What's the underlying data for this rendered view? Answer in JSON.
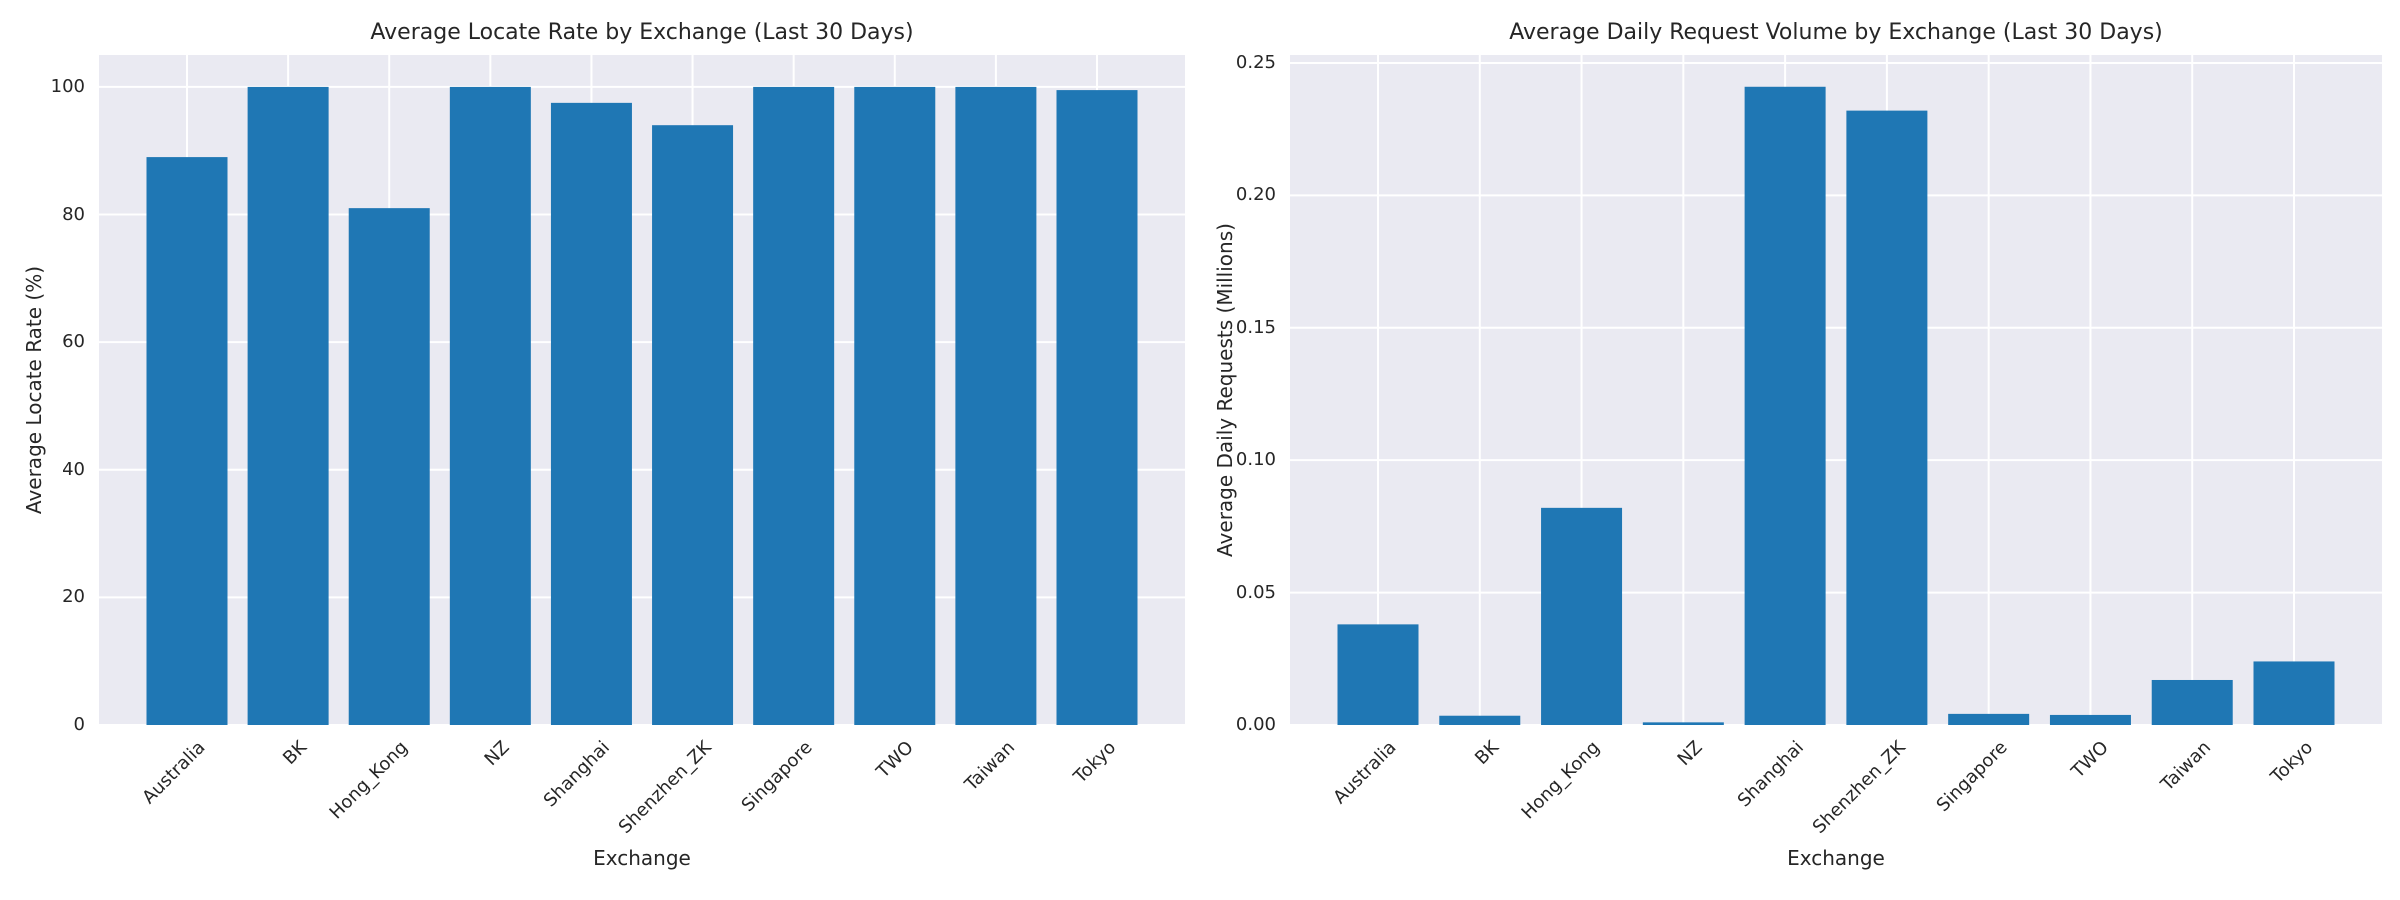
{
  "figure": {
    "background": "#ffffff",
    "text_color": "#262626"
  },
  "chart_data": [
    {
      "type": "bar",
      "title": "Average Locate Rate by Exchange (Last 30 Days)",
      "xlabel": "Exchange",
      "ylabel": "Average Locate Rate (%)",
      "categories": [
        "Australia",
        "BK",
        "Hong_Kong",
        "NZ",
        "Shanghai",
        "Shenzhen_ZK",
        "Singapore",
        "TWO",
        "Taiwan",
        "Tokyo"
      ],
      "values": [
        89,
        100,
        81,
        100,
        97.5,
        94,
        100,
        100,
        100,
        99.5
      ],
      "ylim": [
        0,
        105
      ],
      "yticks": [
        0,
        20,
        40,
        60,
        80,
        100
      ],
      "ytick_labels": [
        "0",
        "20",
        "40",
        "60",
        "80",
        "100"
      ],
      "xtick_rotation": 45,
      "grid": "on",
      "legend": "none",
      "bar_color": "#1f77b4",
      "plot_bg": "#eaeaf2",
      "grid_color": "#ffffff"
    },
    {
      "type": "bar",
      "title": "Average Daily Request Volume by Exchange (Last 30 Days)",
      "xlabel": "Exchange",
      "ylabel": "Average Daily Requests (Millions)",
      "categories": [
        "Australia",
        "BK",
        "Hong_Kong",
        "NZ",
        "Shanghai",
        "Shenzhen_ZK",
        "Singapore",
        "TWO",
        "Taiwan",
        "Tokyo"
      ],
      "values": [
        0.038,
        0.0035,
        0.082,
        0.001,
        0.241,
        0.232,
        0.0042,
        0.0038,
        0.017,
        0.024
      ],
      "ylim": [
        0,
        0.253
      ],
      "yticks": [
        0,
        0.05,
        0.1,
        0.15,
        0.2,
        0.25
      ],
      "ytick_labels": [
        "0.00",
        "0.05",
        "0.10",
        "0.15",
        "0.20",
        "0.25"
      ],
      "xtick_rotation": 45,
      "grid": "on",
      "legend": "none",
      "bar_color": "#1f77b4",
      "plot_bg": "#eaeaf2",
      "grid_color": "#ffffff"
    }
  ]
}
